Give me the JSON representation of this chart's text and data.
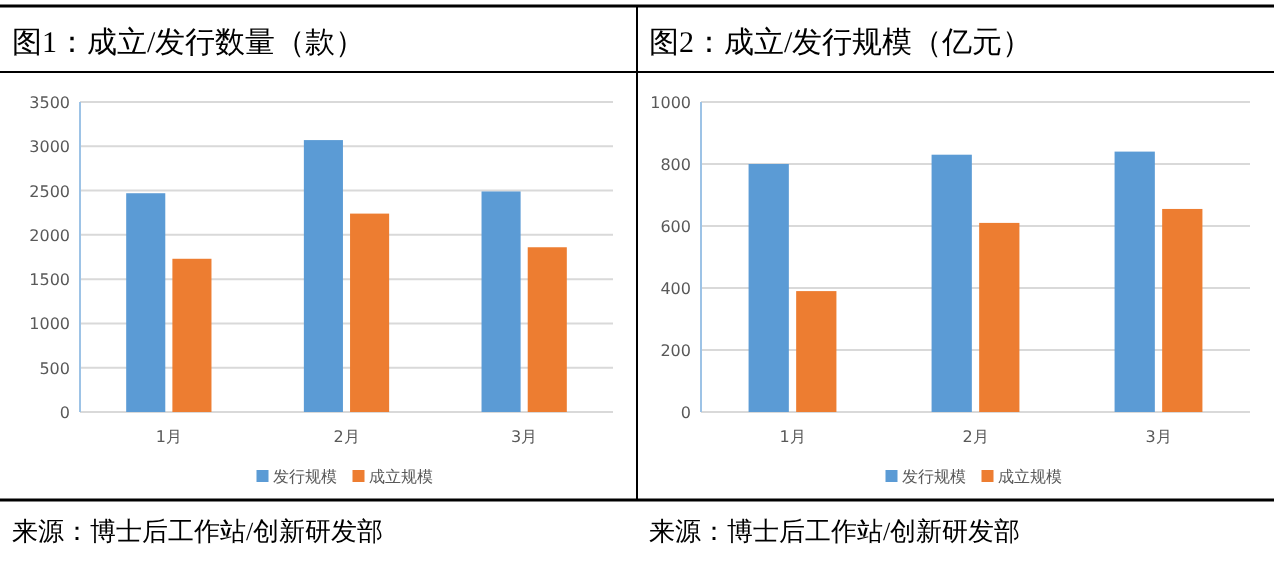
{
  "chart_data": [
    {
      "type": "bar",
      "title": "图1：成立/发行数量（款）",
      "categories": [
        "1月",
        "2月",
        "3月"
      ],
      "series": [
        {
          "name": "发行规模",
          "color": "#5b9bd5",
          "values": [
            2470,
            3070,
            2490
          ]
        },
        {
          "name": "成立规模",
          "color": "#ed7d31",
          "values": [
            1730,
            2240,
            1860
          ]
        }
      ],
      "ylim": [
        0,
        3500
      ],
      "yticks": [
        0,
        500,
        1000,
        1500,
        2000,
        2500,
        3000,
        3500
      ],
      "grid": "y",
      "legend": "bottom",
      "annotations": [
        "来源：博士后工作站/创新研发部"
      ]
    },
    {
      "type": "bar",
      "title": "图2：成立/发行规模（亿元）",
      "categories": [
        "1月",
        "2月",
        "3月"
      ],
      "series": [
        {
          "name": "发行规模",
          "color": "#5b9bd5",
          "values": [
            800,
            830,
            840
          ]
        },
        {
          "name": "成立规模",
          "color": "#ed7d31",
          "values": [
            390,
            610,
            655
          ]
        }
      ],
      "ylim": [
        0,
        1000
      ],
      "yticks": [
        0,
        200,
        400,
        600,
        800,
        1000
      ],
      "grid": "y",
      "legend": "bottom",
      "annotations": [
        "来源：博士后工作站/创新研发部"
      ]
    }
  ]
}
